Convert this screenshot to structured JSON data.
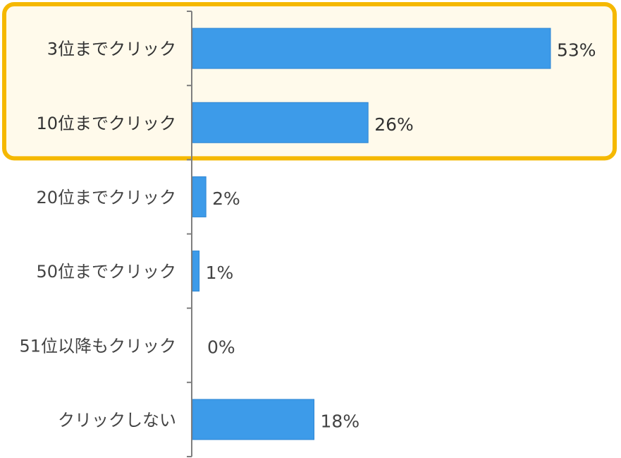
{
  "chart_data": {
    "type": "bar",
    "orientation": "horizontal",
    "categories": [
      "3位までクリック",
      "10位までクリック",
      "20位までクリック",
      "50位までクリック",
      "51位以降もクリック",
      "クリックしない"
    ],
    "values": [
      53,
      26,
      2,
      1,
      0,
      18
    ],
    "value_labels": [
      "53%",
      "26%",
      "2%",
      "1%",
      "0%",
      "18%"
    ],
    "xlim": [
      0,
      60
    ],
    "grid": false,
    "highlight": {
      "categories": [
        "3位までクリック",
        "10位までクリック"
      ]
    }
  },
  "colors": {
    "bar": "#3d9be9",
    "bar_edge": "#2f86d3",
    "axis": "#7f7f7f",
    "highlight_border": "#f5b800",
    "highlight_fill": "#fffaeb"
  }
}
